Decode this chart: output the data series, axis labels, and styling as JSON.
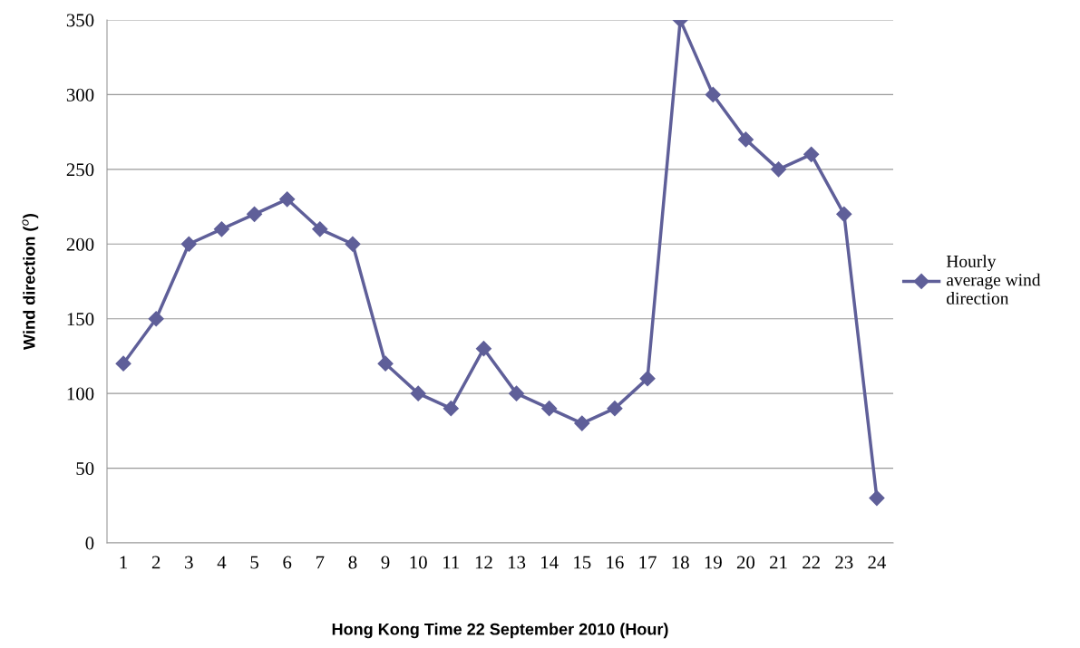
{
  "chart_data": {
    "type": "line",
    "xlabel": "Hong Kong Time 22 September 2010 (Hour)",
    "ylabel": "Wind direction ($^{o}$)",
    "categories": [
      "1",
      "2",
      "3",
      "4",
      "5",
      "6",
      "7",
      "8",
      "9",
      "10",
      "11",
      "12",
      "13",
      "14",
      "15",
      "16",
      "17",
      "18",
      "19",
      "20",
      "21",
      "22",
      "23",
      "24"
    ],
    "series": [
      {
        "name": "Hourly average wind direction",
        "color": "#5f5f99",
        "values": [
          120,
          150,
          200,
          210,
          220,
          230,
          210,
          200,
          120,
          100,
          90,
          130,
          100,
          90,
          80,
          90,
          110,
          350,
          300,
          270,
          250,
          260,
          220,
          30
        ]
      }
    ],
    "ylim": [
      0,
      350
    ],
    "yticks": [
      0,
      50,
      100,
      150,
      200,
      250,
      300,
      350
    ],
    "grid": "y",
    "legend": "right",
    "marker": "diamond",
    "line_style": "solid"
  }
}
